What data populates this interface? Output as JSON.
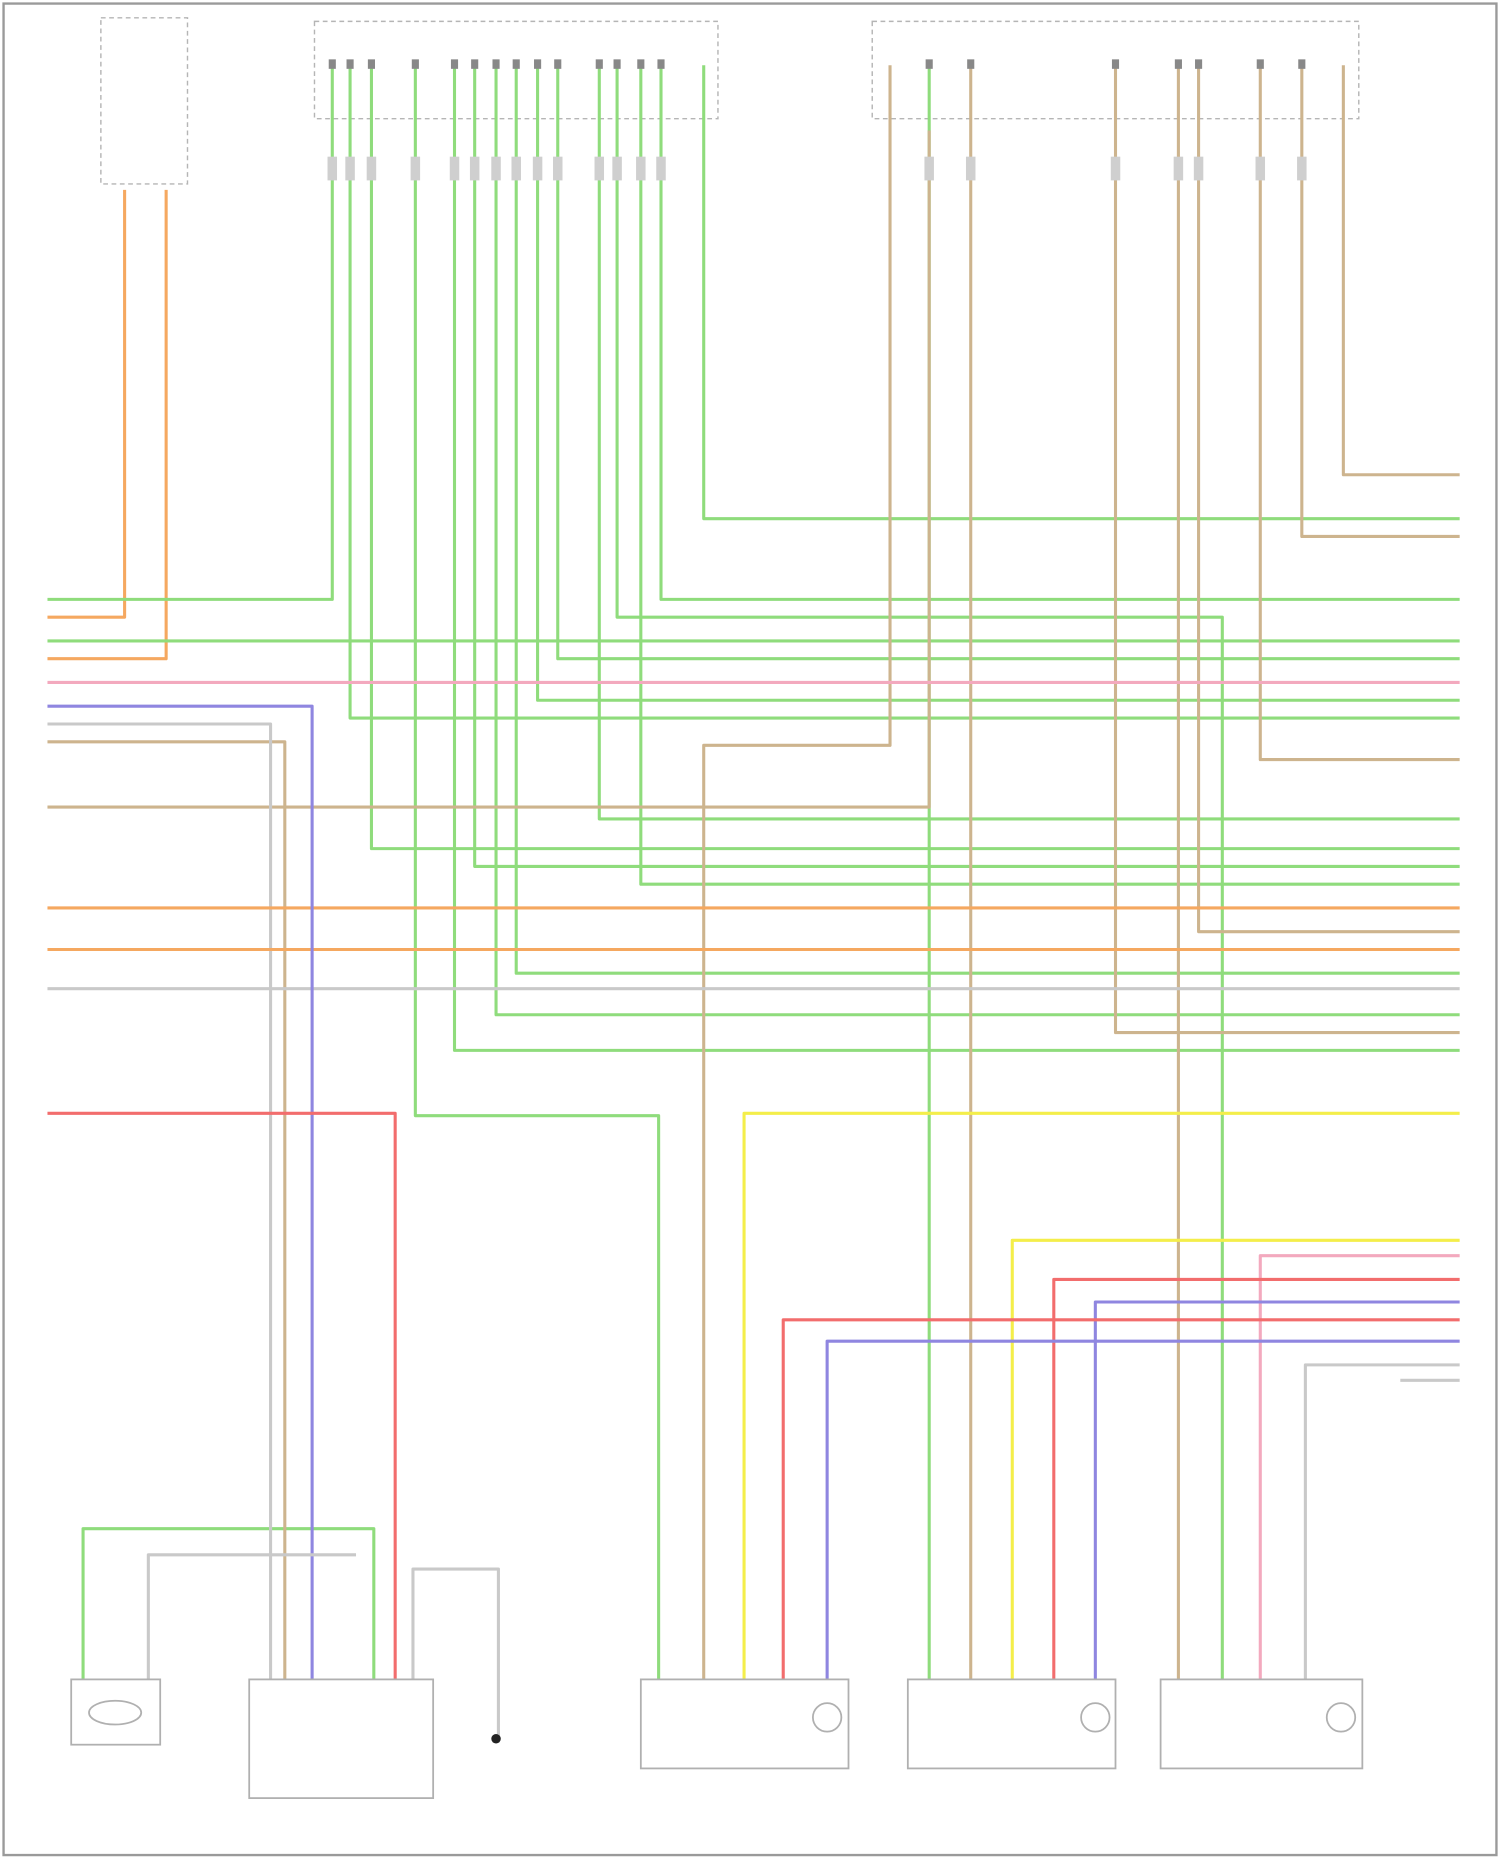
{
  "colors": {
    "green": "#8fdc7c",
    "orange": "#f5a860",
    "tan": "#cdb48e",
    "pink": "#f3a9be",
    "purple": "#8f86e0",
    "red": "#f26d6d",
    "yellow": "#f4ee4a",
    "gray": "#c9c9c9",
    "frame": "#9a9a9a"
  }
}
